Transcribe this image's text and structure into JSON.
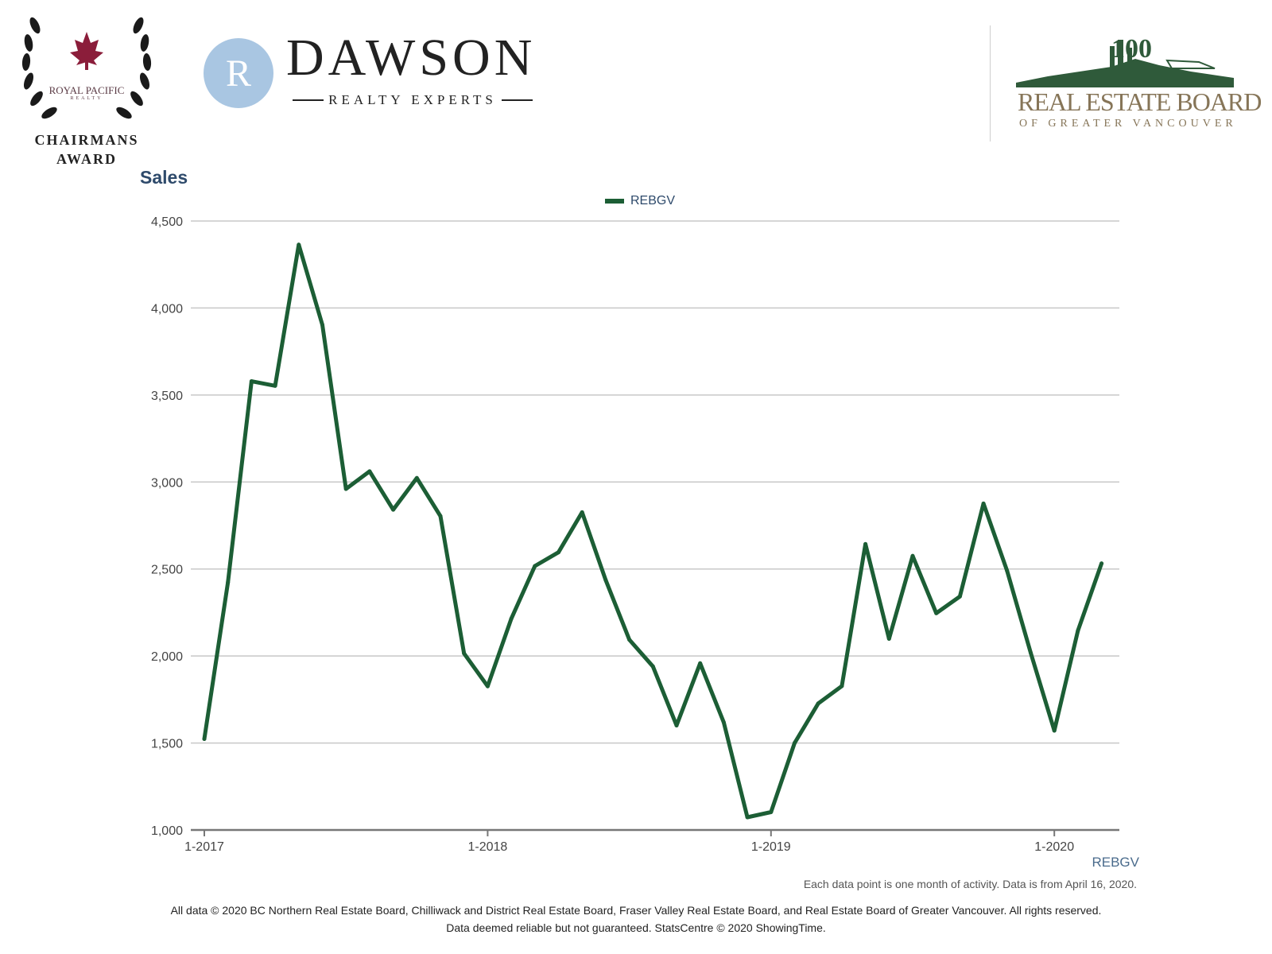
{
  "logos": {
    "award": {
      "org": "ROYAL PACIFIC",
      "sub": "REALTY",
      "title_line1": "CHAIRMANS",
      "title_line2": "AWARD"
    },
    "brand": {
      "monogram": "R",
      "name": "DAWSON",
      "tagline": "REALTY EXPERTS"
    },
    "board": {
      "anniversary": "100",
      "name": "REAL ESTATE BOARD",
      "sub": "OF GREATER VANCOUVER"
    }
  },
  "colors": {
    "series": "#1c5e35",
    "title": "#2e4a6b",
    "grid": "#c8c8c8",
    "board": "#867558",
    "brand_circle": "#a9c6e2",
    "maple": "#8b1d3a"
  },
  "chart_data": {
    "type": "line",
    "title": "Sales",
    "xlabel": "",
    "ylabel": "",
    "ylim": [
      1000,
      4500
    ],
    "yticks": [
      1000,
      1500,
      2000,
      2500,
      3000,
      3500,
      4000,
      4500
    ],
    "ytick_labels": [
      "1,000",
      "1,500",
      "2,000",
      "2,500",
      "3,000",
      "3,500",
      "4,000",
      "4,500"
    ],
    "xticks": [
      "1-2017",
      "1-2018",
      "1-2019",
      "1-2020"
    ],
    "grid": true,
    "legend_position": "top-center",
    "series": [
      {
        "name": "REBGV",
        "x": [
          "1-2017",
          "2-2017",
          "3-2017",
          "4-2017",
          "5-2017",
          "6-2017",
          "7-2017",
          "8-2017",
          "9-2017",
          "10-2017",
          "11-2017",
          "12-2017",
          "1-2018",
          "2-2018",
          "3-2018",
          "4-2018",
          "5-2018",
          "6-2018",
          "7-2018",
          "8-2018",
          "9-2018",
          "10-2018",
          "11-2018",
          "12-2018",
          "1-2019",
          "2-2019",
          "3-2019",
          "4-2019",
          "5-2019",
          "6-2019",
          "7-2019",
          "8-2019",
          "9-2019",
          "10-2019",
          "11-2019",
          "12-2019",
          "1-2020",
          "2-2020",
          "3-2020"
        ],
        "values": [
          1523,
          2423,
          3579,
          3553,
          4364,
          3903,
          2960,
          3061,
          2841,
          3023,
          2804,
          2015,
          1826,
          2214,
          2517,
          2596,
          2826,
          2436,
          2094,
          1940,
          1601,
          1958,
          1618,
          1073,
          1103,
          1500,
          1727,
          1827,
          2643,
          2099,
          2575,
          2246,
          2342,
          2876,
          2489,
          2018,
          1571,
          2146,
          2532
        ]
      }
    ]
  },
  "footer": {
    "legend_label": "REBGV",
    "note": "Each data point is one month of activity. Data is from April 16, 2020.",
    "copyright_line1": "All data © 2020 BC Northern Real Estate Board, Chilliwack and District Real Estate Board, Fraser Valley Real Estate Board, and Real Estate Board of Greater Vancouver. All rights reserved.",
    "copyright_line2": "Data deemed reliable but not guaranteed. StatsCentre © 2020 ShowingTime."
  }
}
